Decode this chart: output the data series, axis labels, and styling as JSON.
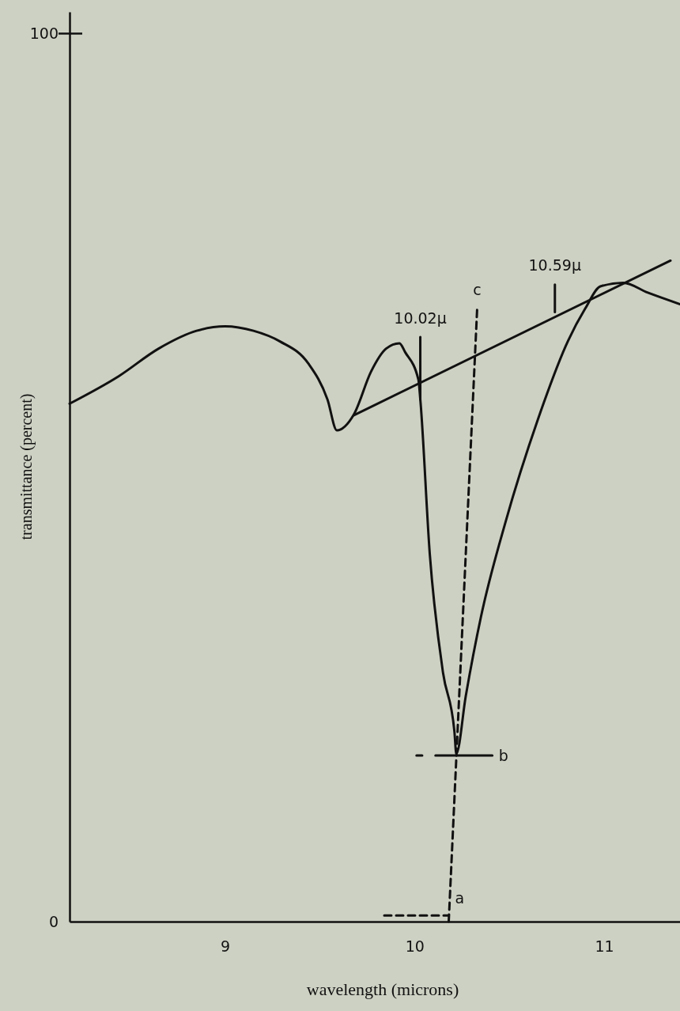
{
  "chart_data": {
    "type": "line",
    "xlabel": "wavelength (microns)",
    "ylabel": "transmittance (percent)",
    "xlim": [
      8.18,
      11.4
    ],
    "xticks": [
      9,
      10,
      11
    ],
    "ylim": [
      0,
      102.4
    ],
    "yticks": [
      0,
      100
    ],
    "grid": false,
    "marker": "none",
    "series": [
      {
        "color": "#111111",
        "line_style": "solid",
        "x": [
          8.18,
          8.44,
          8.65,
          8.85,
          9.0,
          9.15,
          9.29,
          9.44,
          9.54,
          9.59,
          9.68,
          9.77,
          9.85,
          9.92,
          9.95,
          10.02,
          10.03,
          10.08,
          10.15,
          10.21,
          10.22,
          10.27,
          10.35,
          10.48,
          10.65,
          10.81,
          10.9,
          10.98,
          11.1,
          11.23,
          11.4
        ],
        "values": [
          58.3,
          61.4,
          64.5,
          66.5,
          67.0,
          66.5,
          65.3,
          62.8,
          58.8,
          55.3,
          57.1,
          61.9,
          64.5,
          65.1,
          64.1,
          61.0,
          58.8,
          41.4,
          28.0,
          21.4,
          18.9,
          25.4,
          34.3,
          45.0,
          56.5,
          65.4,
          69.0,
          71.5,
          71.9,
          70.8,
          69.5
        ]
      },
      {
        "type": "line",
        "color": "#111111",
        "line_style": "solid",
        "x": [
          9.68,
          11.35
        ],
        "values": [
          57.0,
          74.4
        ]
      },
      {
        "type": "line",
        "color": "#111111",
        "line_style": "solid",
        "x": [
          10.03,
          10.03
        ],
        "values": [
          58.8,
          65.8
        ]
      },
      {
        "type": "line",
        "color": "#111111",
        "line_style": "solid",
        "x": [
          10.74,
          10.74
        ],
        "values": [
          68.6,
          71.7
        ]
      },
      {
        "type": "line",
        "color": "#111111",
        "line_style": "dashed",
        "x": [
          10.18,
          10.33
        ],
        "values": [
          0,
          69.0
        ]
      },
      {
        "type": "line",
        "color": "#111111",
        "line_style": "solid",
        "x": [
          10.11,
          10.41
        ],
        "values": [
          18.7,
          18.7
        ]
      },
      {
        "type": "line",
        "color": "#111111",
        "line_style": "solid",
        "x": [
          10.01,
          10.04
        ],
        "values": [
          18.7,
          18.7
        ]
      },
      {
        "type": "line",
        "color": "#111111",
        "line_style": "dashed",
        "x": [
          9.84,
          10.18
        ],
        "values": [
          0.7,
          0.7
        ]
      }
    ],
    "annotations": [
      {
        "text": "10.02μ",
        "x": 10.03,
        "y": 65.8
      },
      {
        "text": "c",
        "x": 10.33,
        "y": 69.0
      },
      {
        "text": "10.59μ",
        "x": 10.74,
        "y": 71.7
      },
      {
        "text": "b",
        "x": 10.41,
        "y": 18.7
      },
      {
        "text": "a",
        "x": 10.18,
        "y": 0.7
      }
    ]
  }
}
